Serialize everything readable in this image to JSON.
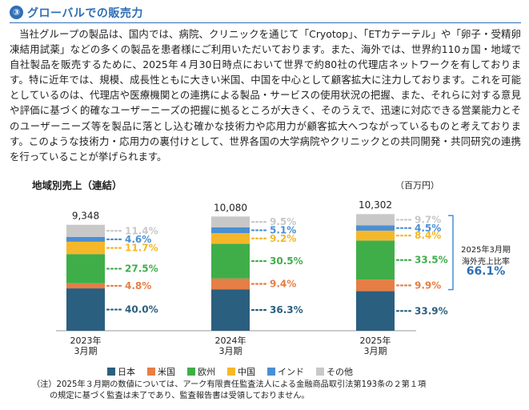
{
  "header": {
    "number": "③",
    "title": "グローバルでの販売力"
  },
  "body_text": "当社グループの製品は、国内では、病院、クリニックを通じて「Cryotop」、「ETカテーテル」や「卵子・受精卵凍結用試薬」などの多くの製品を患者様にご利用いただいております。また、海外では、世界約110ヵ国・地域で自社製品を販売するために、2025年４月30日時点において世界で約80社の代理店ネットワークを有しております。特に近年では、規模、成長性ともに大きい米国、中国を中心として顧客拡大に注力しております。これを可能としているのは、代理店や医療機関との連携による製品・サービスの使用状況の把握、また、それらに対する意見や評価に基づく的確なユーザーニーズの把握に拠るところが大きく、そのうえで、迅速に対応できる営業能力とそのユーザーニーズ等を製品に落とし込む確かな技術力や応用力が顧客拡大へつながっているものと考えております。このような技術力・応用力の裏付けとして、世界各国の大学病院やクリニックとの共同開発・共同研究の連携を行っていることが挙げられます。",
  "chart_data": {
    "type": "bar",
    "stacked": true,
    "title": "地域別売上（連結）",
    "unit": "（百万円）",
    "categories": [
      "2023年\n3月期",
      "2024年\n3月期",
      "2025年\n3月期"
    ],
    "totals": [
      "9,348",
      "10,080",
      "10,302"
    ],
    "total_values": [
      9348,
      10080,
      10302
    ],
    "series": [
      {
        "name": "日本",
        "color": "#2b5f7f",
        "percent": [
          40.0,
          36.3,
          33.9
        ],
        "labels": [
          "40.0%",
          "36.3%",
          "33.9%"
        ]
      },
      {
        "name": "米国",
        "color": "#e67e45",
        "percent": [
          4.8,
          9.4,
          9.9
        ],
        "labels": [
          "4.8%",
          "9.4%",
          "9.9%"
        ]
      },
      {
        "name": "欧州",
        "color": "#3fae49",
        "percent": [
          27.5,
          30.5,
          33.5
        ],
        "labels": [
          "27.5%",
          "30.5%",
          "33.5%"
        ]
      },
      {
        "name": "中国",
        "color": "#f5b72a",
        "percent": [
          11.7,
          9.2,
          8.4
        ],
        "labels": [
          "11.7%",
          "9.2%",
          "8.4%"
        ]
      },
      {
        "name": "インド",
        "color": "#4a8fd4",
        "percent": [
          4.6,
          5.1,
          4.5
        ],
        "labels": [
          "4.6%",
          "5.1%",
          "4.5%"
        ]
      },
      {
        "name": "その他",
        "color": "#c8c8c8",
        "percent": [
          11.4,
          9.5,
          9.7
        ],
        "labels": [
          "11.4%",
          "9.5%",
          "9.7%"
        ]
      }
    ],
    "bracket_label_1": "2025年3月期",
    "bracket_label_2": "海外売上比率",
    "bracket_value": "66.1%"
  },
  "note_line1": "（注）2025年３月期の数値については、アーク有限責任監査法人による金融商品取引法第193条の２第１項",
  "note_line2": "の規定に基づく監査は未了であり、監査報告書は受領しておりません。"
}
